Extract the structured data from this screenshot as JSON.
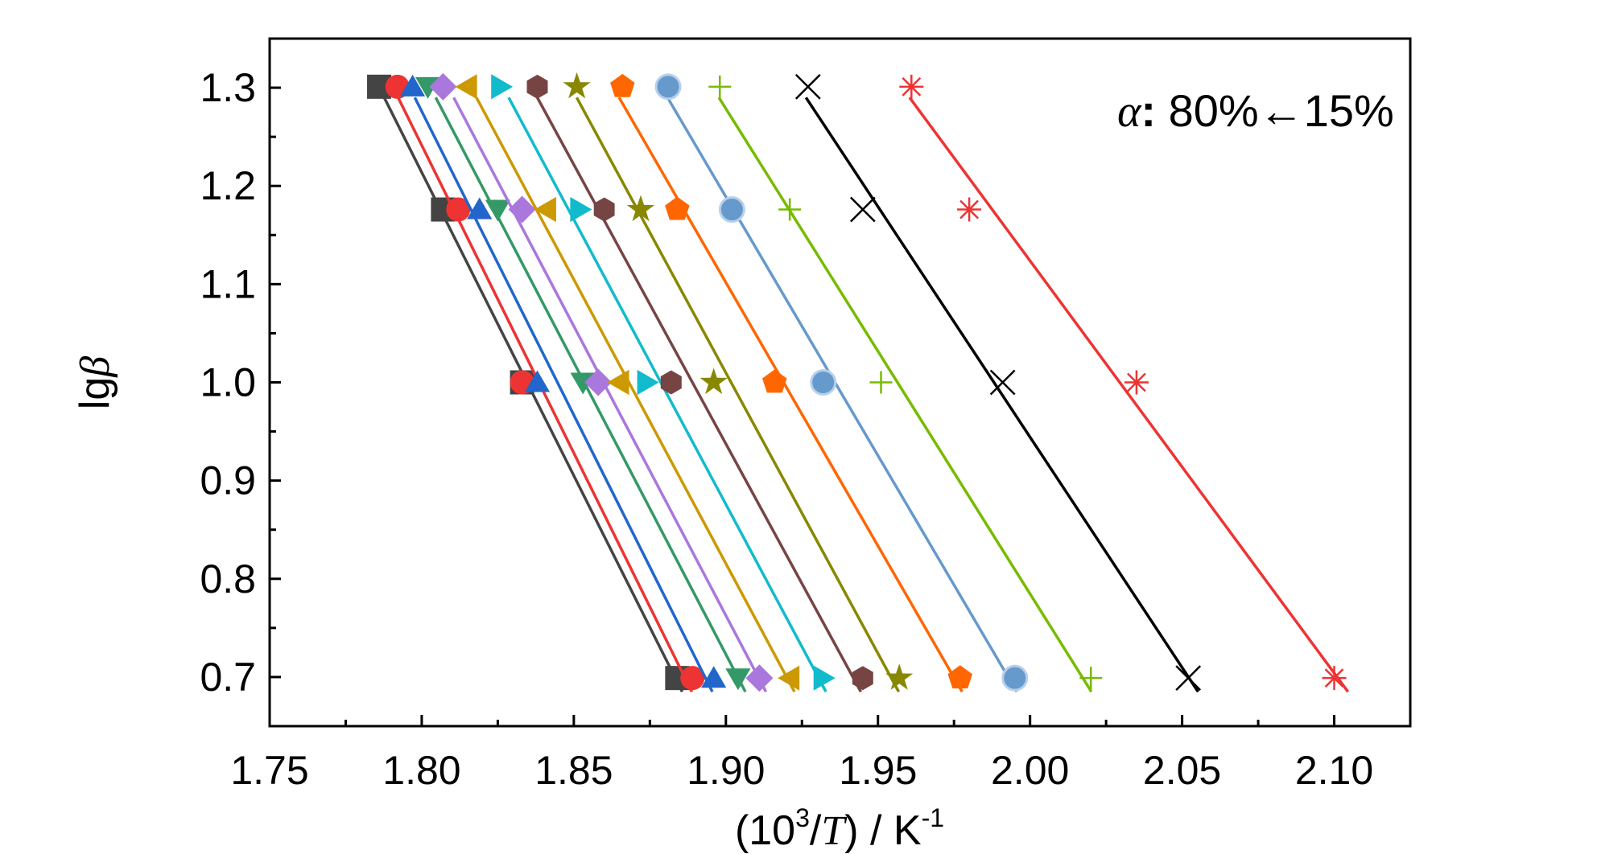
{
  "chart_data": {
    "type": "scatter",
    "xlabel": {
      "main": "(10",
      "sup": "3",
      "slash": "/",
      "var": "T",
      "unit": ") / K",
      "unit_sup": "-1"
    },
    "ylabel": {
      "main": "lg",
      "var": "β"
    },
    "annotation": {
      "var": "α",
      "colon": ":",
      "text": " 80%←15%"
    },
    "xlim": [
      1.75,
      2.125
    ],
    "ylim": [
      0.65,
      1.35
    ],
    "xticks": [
      "1.75",
      "1.80",
      "1.85",
      "1.90",
      "1.95",
      "2.00",
      "2.05",
      "2.10"
    ],
    "yticks": [
      "0.7",
      "0.8",
      "0.9",
      "1.0",
      "1.1",
      "1.2",
      "1.3"
    ],
    "y": [
      1.301,
      1.176,
      1.0,
      0.699
    ],
    "series": [
      {
        "color": "#444444",
        "marker": "square",
        "x": [
          1.786,
          1.807,
          1.833,
          1.884
        ]
      },
      {
        "color": "#ee3333",
        "marker": "circle",
        "x": [
          1.792,
          1.812,
          1.833,
          1.889
        ]
      },
      {
        "color": "#2266cc",
        "marker": "triangle-up",
        "x": [
          1.797,
          1.819,
          1.838,
          1.896
        ]
      },
      {
        "color": "#339966",
        "marker": "triangle-down",
        "x": [
          1.802,
          1.825,
          1.853,
          1.904
        ]
      },
      {
        "color": "#aa77dd",
        "marker": "diamond",
        "x": [
          1.807,
          1.833,
          1.858,
          1.911
        ]
      },
      {
        "color": "#cc9900",
        "marker": "triangle-left",
        "x": [
          1.815,
          1.841,
          1.865,
          1.921
        ]
      },
      {
        "color": "#11bbcc",
        "marker": "triangle-right",
        "x": [
          1.826,
          1.852,
          1.874,
          1.932
        ]
      },
      {
        "color": "#774444",
        "marker": "hexagon",
        "x": [
          1.838,
          1.86,
          1.882,
          1.945
        ]
      },
      {
        "color": "#888800",
        "marker": "star",
        "x": [
          1.851,
          1.872,
          1.896,
          1.957
        ]
      },
      {
        "color": "#ff6600",
        "marker": "pentagon",
        "x": [
          1.866,
          1.884,
          1.916,
          1.977
        ]
      },
      {
        "color": "#6699cc",
        "marker": "sphere",
        "x": [
          1.881,
          1.902,
          1.932,
          1.995
        ]
      },
      {
        "color": "#77bb00",
        "marker": "plus",
        "x": [
          1.898,
          1.921,
          1.951,
          2.02
        ]
      },
      {
        "color": "#000000",
        "marker": "x",
        "x": [
          1.927,
          1.945,
          1.991,
          2.052
        ]
      },
      {
        "color": "#ee3333",
        "marker": "asterisk",
        "x": [
          1.961,
          1.98,
          2.035,
          2.1
        ]
      }
    ]
  }
}
